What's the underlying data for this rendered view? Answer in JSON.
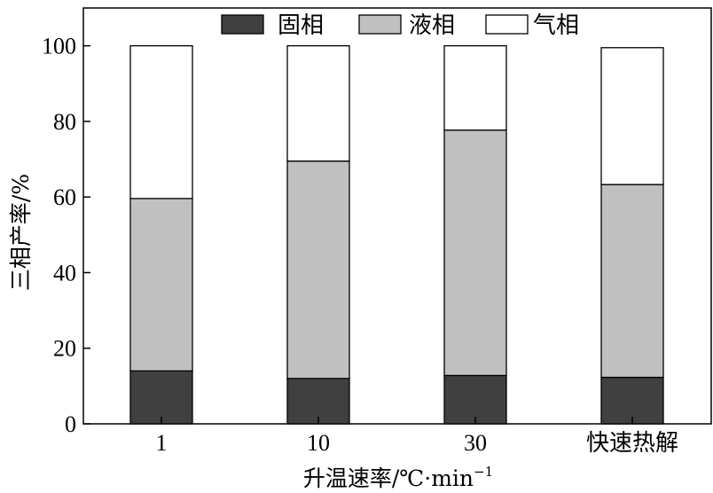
{
  "chart_data": {
    "type": "bar",
    "stacked": true,
    "categories": [
      "1",
      "10",
      "30",
      "快速热解"
    ],
    "series": [
      {
        "name": "固相",
        "color": "#404040",
        "values": [
          14.0,
          12.0,
          12.8,
          12.3
        ]
      },
      {
        "name": "液相",
        "color": "#c0c0c0",
        "values": [
          45.6,
          57.5,
          64.9,
          51.0
        ]
      },
      {
        "name": "气相",
        "color": "#ffffff",
        "values": [
          40.4,
          30.5,
          22.3,
          36.2
        ]
      }
    ],
    "xlabel": "升温速率/℃·min",
    "xlabel_sup": "−1",
    "ylabel": "三相产率/%",
    "ylim": [
      0,
      110
    ],
    "yticks": [
      0,
      20,
      40,
      60,
      80,
      100
    ],
    "grid": false,
    "legend_position": "top"
  }
}
